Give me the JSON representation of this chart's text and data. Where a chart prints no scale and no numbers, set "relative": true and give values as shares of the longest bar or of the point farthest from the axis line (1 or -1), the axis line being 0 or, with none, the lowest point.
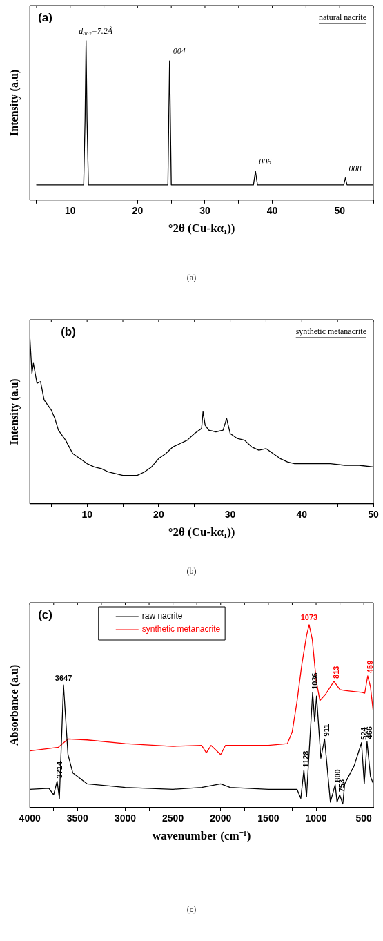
{
  "chart_data": [
    {
      "type": "line",
      "title": "(a)",
      "subtitle": "natural nacrite",
      "xlabel": "°2θ (Cu-kα₁))",
      "ylabel": "Intensity (a.u)",
      "relative": true,
      "grid": false,
      "xlim": [
        4,
        55
      ],
      "xticks": [
        {
          "value": 5,
          "label": null
        },
        10,
        {
          "value": 15,
          "label": null
        },
        20,
        {
          "value": 25,
          "label": null
        },
        30,
        {
          "value": 35,
          "label": null
        },
        40,
        {
          "value": 45,
          "label": null
        },
        50,
        {
          "value": 55,
          "label": null
        }
      ],
      "series": [
        {
          "color": "#000000",
          "x": [
            5,
            12.0,
            12.2,
            12.35,
            12.5,
            12.7,
            24.5,
            24.75,
            25.0,
            37.2,
            37.5,
            37.8,
            50.6,
            50.85,
            51.1,
            55
          ],
          "values": [
            0.095,
            0.095,
            0.5,
            1,
            0.5,
            0.095,
            0.095,
            0.873,
            0.095,
            0.095,
            0.181,
            0.095,
            0.095,
            0.139,
            0.095,
            0.095
          ]
        }
      ],
      "annotations": [
        {
          "text": "d₀₀₂=7.2Å",
          "x": 12.35,
          "y": 1
        },
        {
          "text": "004",
          "x": 24.75,
          "y": 0.873
        },
        {
          "text": "006",
          "x": 37.5,
          "y": 0.181
        },
        {
          "text": "008",
          "x": 50.85,
          "y": 0.139
        },
        "(a)"
      ]
    },
    {
      "type": "line",
      "title": "(b)",
      "subtitle": "synthetic metanacrite",
      "xlabel": "°2θ (Cu-kα₁))",
      "ylabel": "Intensity (a.u)",
      "relative": true,
      "grid": false,
      "xlim": [
        2,
        50
      ],
      "xticks": [
        {
          "value": 5,
          "label": null
        },
        10,
        {
          "value": 15,
          "label": null
        },
        20,
        {
          "value": 25,
          "label": null
        },
        30,
        {
          "value": 35,
          "label": null
        },
        40,
        {
          "value": 45,
          "label": null
        },
        50
      ],
      "series": [
        {
          "color": "#000000",
          "x": [
            2,
            2.3,
            2.5,
            3,
            3.5,
            4,
            4.5,
            5,
            5.5,
            6,
            6.5,
            7,
            7.5,
            8,
            9,
            10,
            11,
            12,
            13,
            14,
            15,
            16,
            17,
            18,
            19,
            20,
            21,
            22,
            23,
            24,
            25,
            26,
            26.2,
            26.5,
            27,
            28,
            29,
            29.5,
            30,
            31,
            32,
            33,
            34,
            35,
            36,
            37,
            38,
            39,
            40,
            42,
            44,
            46,
            48,
            50
          ],
          "values": [
            1,
            0.78,
            0.84,
            0.72,
            0.73,
            0.62,
            0.59,
            0.56,
            0.51,
            0.44,
            0.41,
            0.38,
            0.34,
            0.3,
            0.27,
            0.24,
            0.22,
            0.21,
            0.19,
            0.18,
            0.17,
            0.17,
            0.17,
            0.19,
            0.22,
            0.27,
            0.3,
            0.34,
            0.36,
            0.38,
            0.42,
            0.45,
            0.55,
            0.47,
            0.44,
            0.43,
            0.44,
            0.51,
            0.42,
            0.39,
            0.38,
            0.34,
            0.32,
            0.33,
            0.3,
            0.27,
            0.25,
            0.24,
            0.24,
            0.24,
            0.24,
            0.23,
            0.23,
            0.22
          ]
        }
      ],
      "annotations": [
        "(b)"
      ]
    },
    {
      "type": "line",
      "title": "(c)",
      "xlabel": "wavenumber (cm⁻¹)",
      "ylabel": "Absorbance (a.u)",
      "relative": true,
      "grid": false,
      "legend": "top",
      "xlim": [
        4000,
        400
      ],
      "xticks": [
        4000,
        {
          "value": 3750,
          "label": null
        },
        3500,
        {
          "value": 3250,
          "label": null
        },
        3000,
        {
          "value": 2750,
          "label": null
        },
        2500,
        {
          "value": 2250,
          "label": null
        },
        2000,
        {
          "value": 1750,
          "label": null
        },
        1500,
        {
          "value": 1250,
          "label": null
        },
        1000,
        {
          "value": 750,
          "label": null
        },
        500
      ],
      "series": [
        {
          "name": "raw nacrite",
          "color": "#000000",
          "x": [
            4000,
            3800,
            3750,
            3714,
            3690,
            3647,
            3600,
            3550,
            3500,
            3400,
            3000,
            2500,
            2200,
            2000,
            1900,
            1500,
            1200,
            1160,
            1128,
            1100,
            1036,
            1015,
            995,
            950,
            911,
            850,
            800,
            780,
            753,
            720,
            700,
            600,
            524,
            495,
            466,
            430,
            400
          ],
          "values": [
            0.1,
            0.105,
            0.07,
            0.145,
            0.05,
            0.67,
            0.29,
            0.19,
            0.17,
            0.13,
            0.11,
            0.1,
            0.11,
            0.13,
            0.11,
            0.1,
            0.1,
            0.05,
            0.205,
            0.06,
            0.63,
            0.47,
            0.61,
            0.27,
            0.375,
            0.03,
            0.125,
            0.03,
            0.07,
            0.02,
            0.13,
            0.23,
            0.355,
            0.13,
            0.36,
            0.17,
            0.13
          ]
        },
        {
          "name": "synthetic metanacrite",
          "color": "#ff0000",
          "x": [
            4000,
            3700,
            3600,
            3400,
            3000,
            2500,
            2200,
            2150,
            2100,
            2000,
            1950,
            1500,
            1300,
            1250,
            1200,
            1150,
            1100,
            1073,
            1040,
            1000,
            960,
            900,
            813,
            750,
            700,
            520,
            490,
            459,
            430,
            400
          ],
          "values": [
            0.31,
            0.33,
            0.375,
            0.37,
            0.35,
            0.335,
            0.34,
            0.3,
            0.34,
            0.29,
            0.34,
            0.34,
            0.35,
            0.415,
            0.58,
            0.78,
            0.94,
            1,
            0.92,
            0.7,
            0.585,
            0.62,
            0.69,
            0.645,
            0.64,
            0.63,
            0.625,
            0.72,
            0.66,
            0.52
          ]
        }
      ],
      "annotations": [
        {
          "text": "3714",
          "x": 3714,
          "y": 0.145
        },
        {
          "text": "3647",
          "x": 3647,
          "y": 0.67
        },
        {
          "text": "1128",
          "x": 1128,
          "y": 0.205
        },
        {
          "text": "1036",
          "x": 1036,
          "y": 0.63
        },
        {
          "text": "911",
          "x": 911,
          "y": 0.375
        },
        {
          "text": "800",
          "x": 800,
          "y": 0.125
        },
        {
          "text": "753",
          "x": 753,
          "y": 0.07
        },
        {
          "text": "524",
          "x": 524,
          "y": 0.355
        },
        {
          "text": "466",
          "x": 466,
          "y": 0.36
        },
        {
          "text": "1073",
          "x": 1073,
          "y": 1
        },
        {
          "text": "813",
          "x": 813,
          "y": 0.69
        },
        {
          "text": "459",
          "x": 459,
          "y": 0.72
        },
        "(c)"
      ]
    }
  ]
}
